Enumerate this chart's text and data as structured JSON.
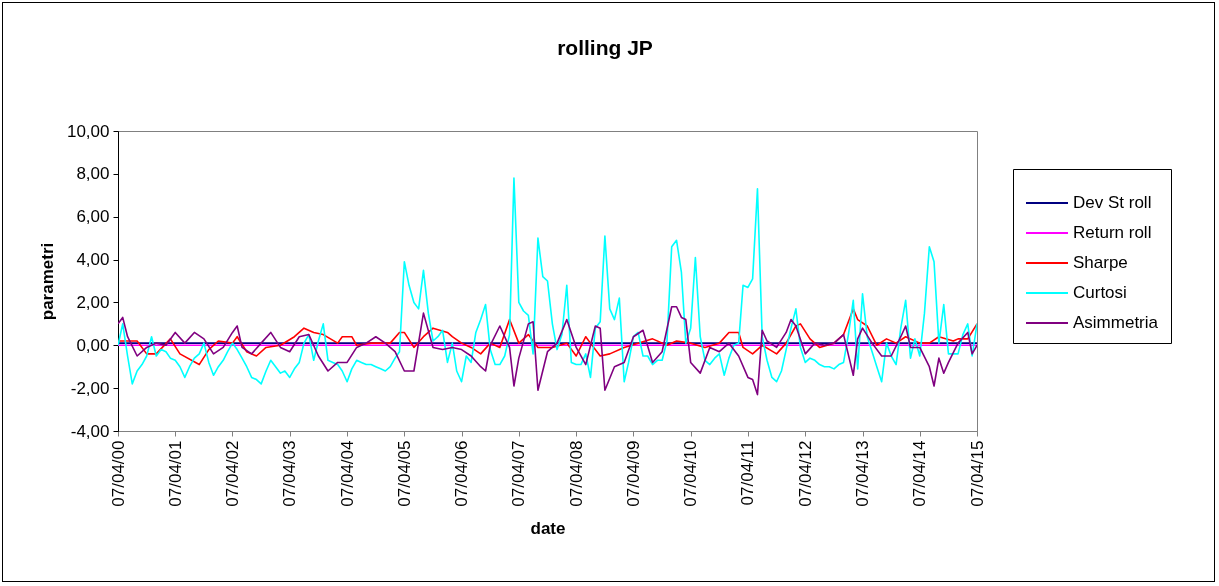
{
  "chart_data": {
    "type": "line",
    "title": "rolling JP",
    "xlabel": "date",
    "ylabel": "parametri",
    "x": [
      "2000-04-07",
      "2000-05-07",
      "2000-06-07",
      "2000-07-07",
      "2000-08-07",
      "2000-09-07",
      "2000-10-07",
      "2000-11-07",
      "2000-12-07",
      "2001-01-07",
      "2001-02-07",
      "2001-03-07",
      "2001-04-07",
      "2001-05-07",
      "2001-06-07",
      "2001-07-07",
      "2001-08-07",
      "2001-09-07",
      "2001-10-07",
      "2001-11-07",
      "2001-12-07",
      "2002-01-07",
      "2002-02-07",
      "2002-03-07",
      "2002-04-07",
      "2002-05-07",
      "2002-06-07",
      "2002-07-07",
      "2002-08-07",
      "2002-09-07",
      "2002-10-07",
      "2002-11-07",
      "2002-12-07",
      "2003-01-07",
      "2003-02-07",
      "2003-03-07",
      "2003-04-07",
      "2003-05-07",
      "2003-06-07",
      "2003-07-07",
      "2003-08-07",
      "2003-09-07",
      "2003-10-07",
      "2003-11-07",
      "2003-12-07",
      "2004-01-07",
      "2004-02-07",
      "2004-03-07",
      "2004-04-07",
      "2004-05-07",
      "2004-06-07",
      "2004-07-07",
      "2004-08-07",
      "2004-09-07",
      "2004-10-07",
      "2004-11-07",
      "2004-12-07",
      "2005-01-07",
      "2005-02-07",
      "2005-03-07",
      "2005-04-07",
      "2005-05-07",
      "2005-06-07",
      "2005-07-07",
      "2005-08-07",
      "2005-09-07",
      "2005-10-07",
      "2005-11-07",
      "2005-12-07",
      "2006-01-07",
      "2006-02-07",
      "2006-03-07",
      "2006-04-07",
      "2006-05-07",
      "2006-06-07",
      "2006-07-07",
      "2006-08-07",
      "2006-09-07",
      "2006-10-07",
      "2006-11-07",
      "2006-12-07",
      "2007-01-07",
      "2007-02-07",
      "2007-03-07",
      "2007-04-07",
      "2007-05-07",
      "2007-06-07",
      "2007-07-07",
      "2007-08-07",
      "2007-09-07",
      "2007-10-07",
      "2007-11-07",
      "2007-12-07",
      "2008-01-07",
      "2008-02-07",
      "2008-03-07",
      "2008-04-07",
      "2008-05-07",
      "2008-06-07",
      "2008-07-07",
      "2008-08-07",
      "2008-09-07",
      "2008-10-07",
      "2008-11-07",
      "2008-12-07",
      "2009-01-07",
      "2009-02-07",
      "2009-03-07",
      "2009-04-07",
      "2009-05-07",
      "2009-06-07",
      "2009-07-07",
      "2009-08-07",
      "2009-09-07",
      "2009-10-07",
      "2009-11-07",
      "2009-12-07",
      "2010-01-07",
      "2010-02-07",
      "2010-03-07",
      "2010-04-07",
      "2010-05-07",
      "2010-06-07",
      "2010-07-07",
      "2010-08-07",
      "2010-09-07",
      "2010-10-07",
      "2010-11-07",
      "2010-12-07",
      "2011-01-07",
      "2011-02-07",
      "2011-03-07",
      "2011-04-07",
      "2011-05-07",
      "2011-06-07",
      "2011-07-07",
      "2011-08-07",
      "2011-09-07",
      "2011-10-07",
      "2011-11-07",
      "2011-12-07",
      "2012-01-07",
      "2012-02-07",
      "2012-03-07",
      "2012-04-07",
      "2012-05-07",
      "2012-06-07",
      "2012-07-07",
      "2012-08-07",
      "2012-09-07",
      "2012-10-07",
      "2012-11-07",
      "2012-12-07",
      "2013-01-07",
      "2013-02-07",
      "2013-03-07",
      "2013-04-07",
      "2013-05-07",
      "2013-06-07",
      "2013-07-07",
      "2013-08-07",
      "2013-09-07",
      "2013-10-07",
      "2013-11-07",
      "2013-12-07",
      "2014-01-07",
      "2014-02-07",
      "2014-03-07",
      "2014-04-07",
      "2014-05-07",
      "2014-06-07",
      "2014-07-07",
      "2014-08-07",
      "2014-09-07",
      "2014-10-07",
      "2014-11-07",
      "2014-12-07",
      "2015-01-07",
      "2015-02-07",
      "2015-03-07",
      "2015-04-07"
    ],
    "series": [
      {
        "name": "Dev St roll",
        "color": "#000080",
        "x": [
          "2000-04-07",
          "2015-04-07"
        ],
        "values": [
          0.1,
          0.1
        ]
      },
      {
        "name": "Return roll",
        "color": "#ff00ff",
        "x": [
          "2000-04-07",
          "2015-04-07"
        ],
        "values": [
          0.0,
          0.0
        ]
      },
      {
        "name": "Sharpe",
        "color": "#ff0000",
        "x": [
          "2000-04-07",
          "2000-08-07",
          "2000-10-07",
          "2000-12-07",
          "2001-03-07",
          "2001-05-07",
          "2001-09-07",
          "2001-11-07",
          "2002-01-07",
          "2002-04-07",
          "2002-05-07",
          "2002-07-07",
          "2002-09-07",
          "2002-11-07",
          "2003-02-07",
          "2003-05-07",
          "2003-07-07",
          "2003-09-07",
          "2003-11-07",
          "2004-02-07",
          "2004-03-07",
          "2004-05-07",
          "2004-06-07",
          "2004-09-07",
          "2005-01-07",
          "2005-03-07",
          "2005-04-07",
          "2005-06-07",
          "2005-08-07",
          "2005-10-07",
          "2006-01-07",
          "2006-02-07",
          "2006-04-07",
          "2006-06-07",
          "2006-08-07",
          "2006-10-07",
          "2006-12-07",
          "2007-02-07",
          "2007-04-07",
          "2007-06-07",
          "2007-08-07",
          "2007-11-07",
          "2008-02-07",
          "2008-04-07",
          "2008-06-07",
          "2008-07-07",
          "2008-09-07",
          "2008-11-07",
          "2009-02-07",
          "2009-05-07",
          "2009-08-07",
          "2009-11-07",
          "2010-01-07",
          "2010-04-07",
          "2010-07-07",
          "2010-10-07",
          "2010-12-07",
          "2011-02-07",
          "2011-03-07",
          "2011-05-07",
          "2011-07-07",
          "2011-10-07",
          "2011-12-07",
          "2012-02-07",
          "2012-03-07",
          "2012-05-07",
          "2012-07-07",
          "2012-10-07",
          "2012-12-07",
          "2013-02-07",
          "2013-03-07",
          "2013-05-07",
          "2013-07-07",
          "2013-09-07",
          "2013-11-07",
          "2014-01-07",
          "2014-04-07",
          "2014-06-07",
          "2014-08-07",
          "2014-11-07",
          "2014-12-07",
          "2015-02-07",
          "2015-04-07"
        ],
        "values": [
          0.2,
          0.2,
          -0.4,
          -0.4,
          0.3,
          -0.4,
          -0.9,
          -0.2,
          0.2,
          0.1,
          0.4,
          -0.3,
          -0.5,
          -0.1,
          0.0,
          0.4,
          0.8,
          0.6,
          0.5,
          0.1,
          0.4,
          0.4,
          0.0,
          0.1,
          0.1,
          0.6,
          0.6,
          -0.1,
          0.4,
          0.8,
          0.6,
          0.4,
          0.1,
          -0.1,
          -0.4,
          0.1,
          -0.1,
          1.2,
          0.1,
          0.5,
          -0.1,
          -0.1,
          0.1,
          -0.5,
          0.4,
          0.1,
          -0.5,
          -0.4,
          -0.1,
          0.1,
          0.3,
          0.0,
          0.2,
          0.1,
          -0.1,
          0.1,
          0.6,
          0.6,
          -0.1,
          -0.4,
          0.0,
          -0.4,
          0.1,
          0.9,
          1.0,
          0.3,
          -0.1,
          0.1,
          0.5,
          1.7,
          1.2,
          0.9,
          0.0,
          0.3,
          0.1,
          0.4,
          0.1,
          0.1,
          0.4,
          0.2,
          0.3,
          0.3,
          1.0
        ]
      },
      {
        "name": "Curtosi",
        "color": "#00ffff",
        "values": [
          0.0,
          1.0,
          -0.5,
          -1.8,
          -1.2,
          -0.9,
          -0.5,
          0.4,
          -0.5,
          -0.2,
          -0.3,
          -0.6,
          -0.7,
          -1.0,
          -1.5,
          -1.0,
          -0.6,
          -0.4,
          0.1,
          -0.8,
          -1.4,
          -1.0,
          -0.7,
          -0.3,
          0.1,
          -0.2,
          -0.6,
          -1.0,
          -1.5,
          -1.6,
          -1.8,
          -1.2,
          -0.7,
          -1.0,
          -1.3,
          -1.2,
          -1.5,
          -1.1,
          -0.8,
          0.1,
          0.5,
          -0.7,
          0.2,
          1.0,
          -0.7,
          -0.8,
          -0.9,
          -1.2,
          -1.7,
          -1.1,
          -0.7,
          -0.8,
          -0.9,
          -0.9,
          -1.0,
          -1.1,
          -1.2,
          -1.0,
          -0.6,
          -0.3,
          3.9,
          2.8,
          2.0,
          1.7,
          3.5,
          1.5,
          0.2,
          0.4,
          0.7,
          -0.8,
          0.1,
          -1.2,
          -1.7,
          -0.5,
          -0.8,
          0.6,
          1.2,
          1.9,
          -0.2,
          -0.9,
          -0.9,
          -0.5,
          0.5,
          7.8,
          2.0,
          1.6,
          1.4,
          -0.4,
          5.0,
          3.2,
          3.0,
          1.0,
          -0.2,
          0.5,
          2.8,
          -0.8,
          -0.9,
          -0.9,
          -0.4,
          -1.5,
          0.8,
          1.1,
          5.1,
          1.7,
          1.2,
          2.2,
          -1.7,
          -0.8,
          0.4,
          0.6,
          -0.5,
          -0.5,
          -0.9,
          -0.7,
          -0.7,
          0.2,
          4.6,
          4.9,
          3.4,
          0.1,
          0.8,
          4.1,
          0.4,
          -0.7,
          -0.9,
          -0.6,
          -0.4,
          -1.4,
          -0.6,
          0.0,
          0.1,
          2.8,
          2.7,
          3.1,
          7.3,
          0.4,
          -0.7,
          -1.5,
          -1.7,
          -1.2,
          -0.2,
          0.8,
          1.7,
          -0.1,
          -0.8,
          -0.6,
          -0.7,
          -0.9,
          -1.0,
          -1.0,
          -1.1,
          -0.9,
          -0.8,
          0.5,
          2.1,
          -1.1,
          2.4,
          0.4,
          -0.3,
          -1.0,
          -1.7,
          0.1,
          -0.5,
          -0.9,
          0.8,
          2.1,
          -0.6,
          0.3,
          -0.5,
          1.5,
          4.6,
          3.9,
          0.1,
          1.9,
          -0.4,
          -0.4,
          -0.4,
          0.5,
          1.0,
          -0.5,
          1.0
        ]
      },
      {
        "name": "Asimmetria",
        "color": "#800080",
        "x": [
          "2000-04-07",
          "2000-05-07",
          "2000-06-07",
          "2000-08-07",
          "2000-10-07",
          "2000-12-07",
          "2001-02-07",
          "2001-04-07",
          "2001-06-07",
          "2001-08-07",
          "2001-10-07",
          "2001-12-07",
          "2002-02-07",
          "2002-04-07",
          "2002-05-07",
          "2002-06-07",
          "2002-08-07",
          "2002-10-07",
          "2002-12-07",
          "2003-02-07",
          "2003-04-07",
          "2003-06-07",
          "2003-08-07",
          "2003-10-07",
          "2003-12-07",
          "2004-02-07",
          "2004-04-07",
          "2004-06-07",
          "2004-08-07",
          "2004-10-07",
          "2004-12-07",
          "2005-02-07",
          "2005-04-07",
          "2005-06-07",
          "2005-08-07",
          "2005-10-07",
          "2005-12-07",
          "2006-02-07",
          "2006-04-07",
          "2006-06-07",
          "2006-08-07",
          "2006-09-07",
          "2006-10-07",
          "2006-12-07",
          "2007-02-07",
          "2007-03-07",
          "2007-04-07",
          "2007-06-07",
          "2007-07-07",
          "2007-08-07",
          "2007-10-07",
          "2007-12-07",
          "2008-02-07",
          "2008-04-07",
          "2008-06-07",
          "2008-08-07",
          "2008-09-07",
          "2008-10-07",
          "2008-12-07",
          "2009-02-07",
          "2009-04-07",
          "2009-06-07",
          "2009-08-07",
          "2009-10-07",
          "2009-12-07",
          "2010-01-07",
          "2010-02-07",
          "2010-03-07",
          "2010-04-07",
          "2010-06-07",
          "2010-08-07",
          "2010-10-07",
          "2010-12-07",
          "2011-02-07",
          "2011-04-07",
          "2011-05-07",
          "2011-06-07",
          "2011-07-07",
          "2011-08-07",
          "2011-10-07",
          "2011-12-07",
          "2012-01-07",
          "2012-02-07",
          "2012-04-07",
          "2012-06-07",
          "2012-08-07",
          "2012-10-07",
          "2012-12-07",
          "2013-02-07",
          "2013-03-07",
          "2013-04-07",
          "2013-06-07",
          "2013-08-07",
          "2013-10-07",
          "2013-12-07",
          "2014-01-07",
          "2014-02-07",
          "2014-04-07",
          "2014-06-07",
          "2014-07-07",
          "2014-08-07",
          "2014-09-07",
          "2014-10-07",
          "2014-12-07",
          "2015-02-07",
          "2015-03-07",
          "2015-04-07"
        ],
        "values": [
          1.0,
          1.3,
          0.4,
          -0.5,
          -0.1,
          0.1,
          0.0,
          0.6,
          0.1,
          0.6,
          0.3,
          -0.4,
          -0.1,
          0.6,
          0.9,
          -0.1,
          -0.4,
          0.1,
          0.6,
          -0.1,
          -0.3,
          0.4,
          0.5,
          -0.5,
          -1.2,
          -0.8,
          -0.8,
          -0.1,
          0.1,
          0.4,
          0.1,
          -0.3,
          -1.2,
          -1.2,
          1.5,
          -0.1,
          -0.2,
          -0.1,
          -0.2,
          -0.5,
          -1.0,
          -1.2,
          0.0,
          0.9,
          -0.1,
          -1.9,
          -0.6,
          1.0,
          1.1,
          -2.1,
          -0.3,
          0.1,
          1.2,
          -0.1,
          -0.9,
          0.9,
          0.8,
          -2.1,
          -1.0,
          -0.8,
          0.4,
          0.7,
          -0.8,
          -0.3,
          1.8,
          1.8,
          1.3,
          1.2,
          -0.8,
          -1.3,
          -0.1,
          -0.3,
          0.1,
          -0.5,
          -1.5,
          -1.6,
          -2.3,
          0.7,
          0.2,
          -0.1,
          0.6,
          1.2,
          0.9,
          -0.4,
          0.1,
          0.0,
          0.1,
          0.5,
          -1.4,
          0.3,
          0.8,
          0.1,
          -0.5,
          -0.5,
          0.4,
          0.9,
          -0.1,
          -0.1,
          -1.0,
          -1.9,
          -0.6,
          -1.3,
          -0.8,
          0.1,
          0.6,
          -0.4,
          0.0
        ]
      }
    ],
    "xlim": [
      "2000-04-07",
      "2015-04-07"
    ],
    "xticks": [
      {
        "value": "2000-04-07",
        "label": "07/04/00"
      },
      {
        "value": "2001-04-07",
        "label": "07/04/01"
      },
      {
        "value": "2002-04-07",
        "label": "07/04/02"
      },
      {
        "value": "2003-04-07",
        "label": "07/04/03"
      },
      {
        "value": "2004-04-07",
        "label": "07/04/04"
      },
      {
        "value": "2005-04-07",
        "label": "07/04/05"
      },
      {
        "value": "2006-04-07",
        "label": "07/04/06"
      },
      {
        "value": "2007-04-07",
        "label": "07/04/07"
      },
      {
        "value": "2008-04-07",
        "label": "07/04/08"
      },
      {
        "value": "2009-04-07",
        "label": "07/04/09"
      },
      {
        "value": "2010-04-07",
        "label": "07/04/10"
      },
      {
        "value": "2011-04-07",
        "label": "07/04/11"
      },
      {
        "value": "2012-04-07",
        "label": "07/04/12"
      },
      {
        "value": "2013-04-07",
        "label": "07/04/13"
      },
      {
        "value": "2014-04-07",
        "label": "07/04/14"
      },
      {
        "value": "2015-04-07",
        "label": "07/04/15"
      }
    ],
    "ylim": [
      -4,
      10
    ],
    "yticks": [
      {
        "value": -4,
        "label": "-4,00"
      },
      {
        "value": -2,
        "label": "-2,00"
      },
      {
        "value": 0,
        "label": "0,00"
      },
      {
        "value": 2,
        "label": "2,00"
      },
      {
        "value": 4,
        "label": "4,00"
      },
      {
        "value": 6,
        "label": "6,00"
      },
      {
        "value": 8,
        "label": "8,00"
      },
      {
        "value": 10,
        "label": "10,00"
      }
    ],
    "grid": false,
    "legend": "right"
  }
}
